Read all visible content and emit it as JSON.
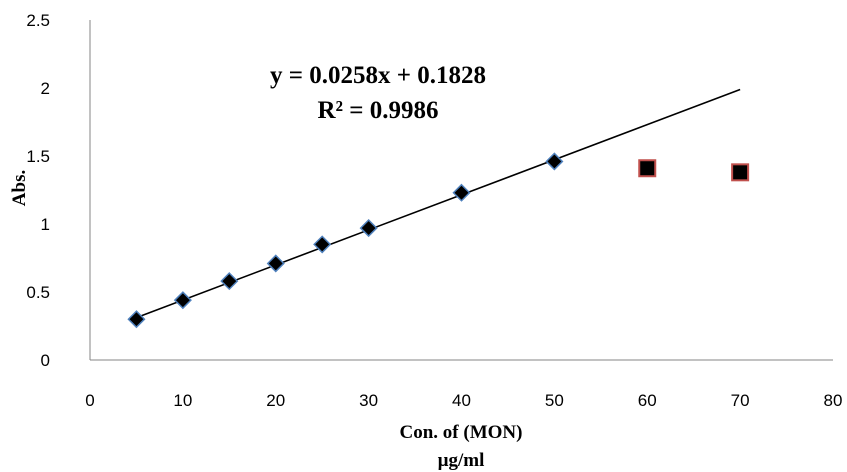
{
  "chart_data": {
    "type": "scatter",
    "title": "",
    "xlabel_line1": "Con. of (MON)",
    "xlabel_line2": "µg/ml",
    "ylabel": "Abs.",
    "xlim": [
      0,
      80
    ],
    "ylim": [
      0,
      2.5
    ],
    "x_ticks": [
      "0",
      "10",
      "20",
      "30",
      "40",
      "50",
      "60",
      "70",
      "80"
    ],
    "y_ticks": [
      "0",
      "0.5",
      "1",
      "1.5",
      "2",
      "2.5"
    ],
    "grid": false,
    "legend": "none",
    "series": [
      {
        "marker": "diamond",
        "color": "#000000",
        "edge_color": "#4f81bd",
        "points": [
          {
            "x": 5,
            "y": 0.3
          },
          {
            "x": 10,
            "y": 0.44
          },
          {
            "x": 15,
            "y": 0.58
          },
          {
            "x": 20,
            "y": 0.71
          },
          {
            "x": 25,
            "y": 0.85
          },
          {
            "x": 30,
            "y": 0.97
          },
          {
            "x": 40,
            "y": 1.23
          },
          {
            "x": 50,
            "y": 1.46
          }
        ]
      },
      {
        "marker": "square",
        "color": "#000000",
        "edge_color": "#c0504d",
        "points": [
          {
            "x": 60,
            "y": 1.41
          },
          {
            "x": 70,
            "y": 1.38
          }
        ]
      }
    ],
    "trendline": {
      "slope": 0.0258,
      "intercept": 0.1828,
      "x_range": [
        5,
        70
      ],
      "equation": "y = 0.0258x + 0.1828",
      "r_squared": "R² = 0.9986"
    }
  }
}
